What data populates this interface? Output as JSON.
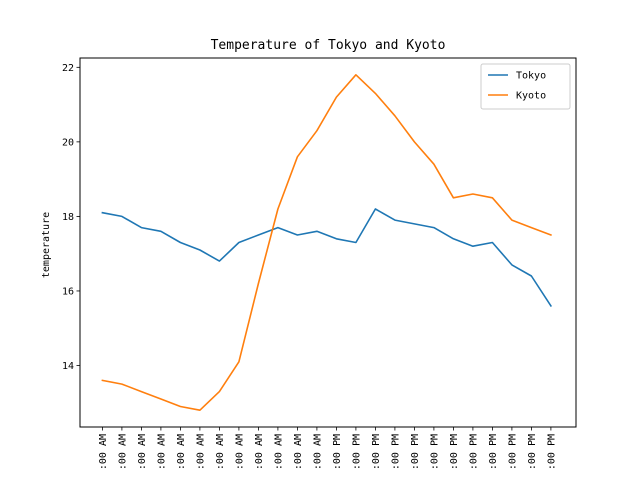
{
  "chart_data": {
    "type": "line",
    "title": "Temperature of Tokyo and Kyoto",
    "xlabel": "",
    "ylabel": "temperature",
    "x_tick_labels": [
      ":00 AM",
      ":00 AM",
      ":00 AM",
      ":00 AM",
      ":00 AM",
      ":00 AM",
      ":00 AM",
      ":00 AM",
      ":00 AM",
      ":00 AM",
      ":00 AM",
      ":00 AM",
      ":00 PM",
      ":00 PM",
      ":00 PM",
      ":00 PM",
      ":00 PM",
      ":00 PM",
      ":00 PM",
      ":00 PM",
      ":00 PM",
      ":00 PM",
      ":00 PM",
      ":00 PM"
    ],
    "y_ticks": [
      14,
      16,
      18,
      20,
      22
    ],
    "ylim": [
      12.35,
      22.25
    ],
    "legend_position": "top-right",
    "grid": false,
    "series": [
      {
        "name": "Tokyo",
        "color": "#1f77b4",
        "values": [
          18.1,
          18.0,
          17.7,
          17.6,
          17.3,
          17.1,
          16.8,
          17.3,
          17.5,
          17.7,
          17.5,
          17.6,
          17.4,
          17.3,
          18.2,
          17.9,
          17.8,
          17.7,
          17.4,
          17.2,
          17.3,
          16.7,
          16.4,
          15.6
        ]
      },
      {
        "name": "Kyoto",
        "color": "#ff7f0e",
        "values": [
          13.6,
          13.5,
          13.3,
          13.1,
          12.9,
          12.8,
          13.3,
          14.1,
          16.2,
          18.2,
          19.6,
          20.3,
          21.2,
          21.8,
          21.3,
          20.7,
          20.0,
          19.4,
          18.5,
          18.6,
          18.5,
          17.9,
          17.7,
          17.5
        ]
      }
    ]
  }
}
